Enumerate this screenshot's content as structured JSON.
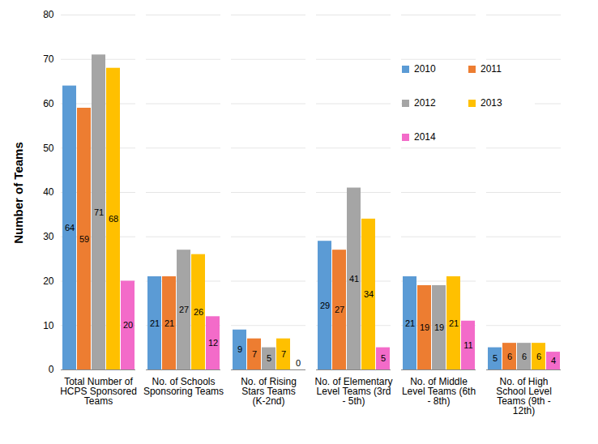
{
  "chart_data": {
    "type": "bar",
    "ylabel": "Number of Teams",
    "categories": [
      "Total Number of HCPS Sponsored Teams",
      "No. of Schools Sponsoring Teams",
      "No. of Rising Stars Teams (K-2nd)",
      "No. of Elementary Level Teams (3rd - 5th)",
      "No. of Middle Level Teams (6th - 8th)",
      "No. of High School Level Teams (9th - 12th)"
    ],
    "series": [
      {
        "name": "2010",
        "color": "#5b9bd5",
        "values": [
          64,
          21,
          9,
          29,
          21,
          5
        ]
      },
      {
        "name": "2011",
        "color": "#ed7d31",
        "values": [
          59,
          21,
          7,
          27,
          19,
          6
        ]
      },
      {
        "name": "2012",
        "color": "#a5a5a5",
        "values": [
          71,
          27,
          5,
          41,
          19,
          6
        ]
      },
      {
        "name": "2013",
        "color": "#ffc000",
        "values": [
          68,
          26,
          7,
          34,
          21,
          6
        ]
      },
      {
        "name": "2014",
        "color": "#f36bc9",
        "values": [
          20,
          12,
          0,
          5,
          11,
          4
        ]
      }
    ],
    "ylim": [
      0,
      80
    ],
    "yticks": [
      0,
      10,
      20,
      30,
      40,
      50,
      60,
      70,
      80
    ],
    "grid": true,
    "legend": "top right",
    "data_labels": true
  }
}
